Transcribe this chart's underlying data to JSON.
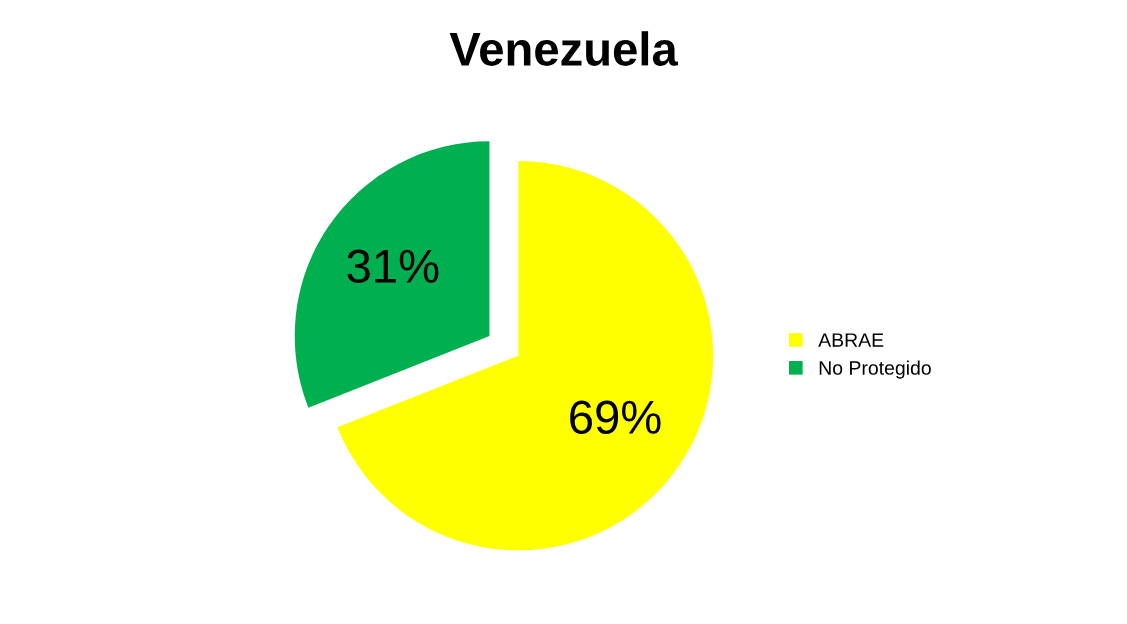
{
  "chart_data": {
    "type": "pie",
    "title": "Venezuela",
    "categories": [
      "ABRAE",
      "No Protegido"
    ],
    "values": [
      69,
      31
    ],
    "colors": [
      "#ffff00",
      "#00b050"
    ],
    "value_labels": [
      "69%",
      "31%"
    ],
    "legend": "right"
  }
}
